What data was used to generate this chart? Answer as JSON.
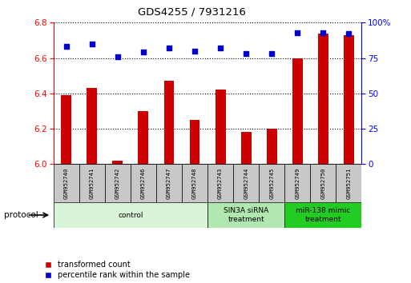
{
  "title": "GDS4255 / 7931216",
  "samples": [
    "GSM952740",
    "GSM952741",
    "GSM952742",
    "GSM952746",
    "GSM952747",
    "GSM952748",
    "GSM952743",
    "GSM952744",
    "GSM952745",
    "GSM952749",
    "GSM952750",
    "GSM952751"
  ],
  "transformed_count": [
    6.39,
    6.43,
    6.02,
    6.3,
    6.47,
    6.25,
    6.42,
    6.18,
    6.2,
    6.6,
    6.74,
    6.73
  ],
  "percentile_rank": [
    83,
    85,
    76,
    79,
    82,
    80,
    82,
    78,
    78,
    93,
    93,
    92
  ],
  "groups": [
    {
      "label": "control",
      "start": 0,
      "end": 6,
      "color": "#d8f5d8"
    },
    {
      "label": "SIN3A siRNA\ntreatment",
      "start": 6,
      "end": 9,
      "color": "#b0e8b0"
    },
    {
      "label": "miR-138 mimic\ntreatment",
      "start": 9,
      "end": 12,
      "color": "#22cc22"
    }
  ],
  "ylim_left": [
    6.0,
    6.8
  ],
  "ylim_right": [
    0,
    100
  ],
  "yticks_left": [
    6.0,
    6.2,
    6.4,
    6.6,
    6.8
  ],
  "yticks_right": [
    0,
    25,
    50,
    75,
    100
  ],
  "bar_color": "#cc0000",
  "dot_color": "#0000cc",
  "bar_base": 6.0,
  "dot_marker": "s",
  "dot_size": 18,
  "grid_color": "black",
  "background_color": "#ffffff",
  "protocol_label": "protocol",
  "legend": [
    "transformed count",
    "percentile rank within the sample"
  ],
  "label_box_color": "#c8c8c8"
}
